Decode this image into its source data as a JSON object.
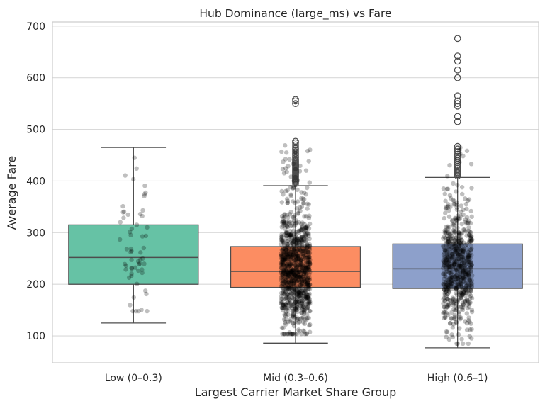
{
  "chart_data": {
    "type": "box",
    "title": "Hub Dominance (large_ms) vs Fare",
    "xlabel": "Largest Carrier Market Share Group",
    "ylabel": "Average Fare",
    "ylim": [
      48,
      708
    ],
    "yticks": [
      100,
      200,
      300,
      400,
      500,
      600,
      700
    ],
    "grid": "y",
    "legend": "none",
    "categories": [
      "Low (0–0.3)",
      "Mid (0.3–0.6)",
      "High (0.6–1)"
    ],
    "colors": [
      "#66c2a5",
      "#fc8d62",
      "#8da0cb"
    ],
    "boxes": [
      {
        "category": "Low (0–0.3)",
        "whisker_low": 125,
        "q1": 200,
        "median": 252,
        "q3": 315,
        "whisker_high": 465,
        "outliers": []
      },
      {
        "category": "Mid (0.3–0.6)",
        "whisker_low": 86,
        "q1": 194,
        "median": 225,
        "q3": 273,
        "whisker_high": 391,
        "outliers": [
          395,
          398,
          400,
          402,
          404,
          406,
          408,
          410,
          412,
          414,
          416,
          418,
          420,
          422,
          424,
          426,
          428,
          430,
          432,
          434,
          436,
          438,
          440,
          442,
          445,
          448,
          451,
          454,
          457,
          460,
          463,
          466,
          470,
          474,
          477,
          550,
          555,
          558
        ]
      },
      {
        "category": "High (0.6–1)",
        "whisker_low": 77,
        "q1": 192,
        "median": 230,
        "q3": 278,
        "whisker_high": 407,
        "outliers": [
          410,
          413,
          416,
          419,
          422,
          425,
          428,
          432,
          436,
          440,
          444,
          448,
          452,
          457,
          462,
          467,
          515,
          525,
          545,
          550,
          555,
          565,
          600,
          615,
          632,
          642,
          676
        ]
      }
    ],
    "strip": {
      "color": "#000000",
      "opacity": 0.25,
      "points": [
        {
          "category": "Low (0–0.3)",
          "count": 60,
          "min": 148,
          "max": 445
        },
        {
          "category": "Mid (0.3–0.6)",
          "count": 1000,
          "min": 104,
          "max": 470
        },
        {
          "category": "High (0.6–1)",
          "count": 700,
          "min": 85,
          "max": 470
        }
      ]
    }
  }
}
